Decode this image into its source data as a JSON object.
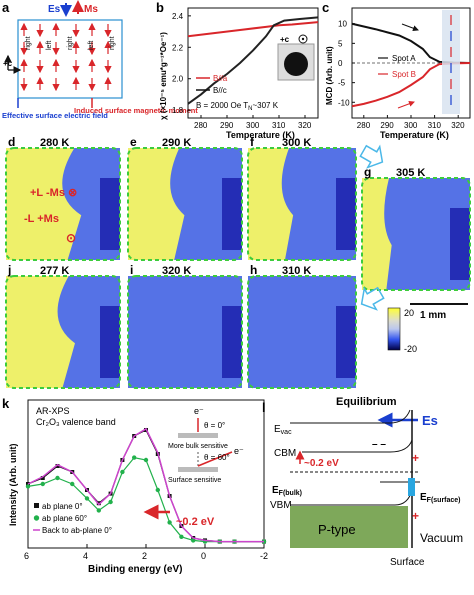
{
  "panels": {
    "a": {
      "label": "a",
      "es": "Es",
      "ms": "Ms",
      "axis_c": "+c",
      "row_labels": [
        "right",
        "left",
        "right",
        "left",
        "right"
      ],
      "efield_caption": "Effective surface electric field",
      "moment_caption": "Induced surface magnetic moment"
    },
    "b": {
      "label": "b",
      "ylabel": "χ (×10⁻⁵ emu*g⁻¹*Oe⁻¹)",
      "xlabel": "Temperature (K)",
      "legend": [
        "B//a",
        "B//c"
      ],
      "annotation": "B = 2000 Oe  T",
      "annotation_sub": "N",
      "annotation_tail": "~307 K",
      "inset_label": "+c",
      "xticks": [
        "280",
        "290",
        "300",
        "310",
        "320"
      ],
      "yticks": [
        "1.8",
        "2.0",
        "2.2",
        "2.4"
      ],
      "colors": {
        "a": "#d9262a",
        "c": "#222222"
      }
    },
    "c": {
      "label": "c",
      "ylabel": "MCD (Arb. unit)",
      "xlabel": "Temperature (K)",
      "legend": [
        "Spot A",
        "Spot B"
      ],
      "xticks": [
        "280",
        "290",
        "300",
        "310",
        "320"
      ],
      "yticks": [
        "10",
        "5",
        "0",
        "-5",
        "-10"
      ],
      "colors": {
        "A": "#111111",
        "B": "#d9262a"
      }
    },
    "maps": [
      {
        "label": "d",
        "temp": "280 K"
      },
      {
        "label": "e",
        "temp": "290 K"
      },
      {
        "label": "f",
        "temp": "300 K"
      },
      {
        "label": "g",
        "temp": "305 K"
      },
      {
        "label": "j",
        "temp": "277 K"
      },
      {
        "label": "i",
        "temp": "320 K"
      },
      {
        "label": "h",
        "temp": "310 K"
      }
    ],
    "d_annot": {
      "top": "+L -Ms ⊗",
      "bottom": "-L +Ms",
      "odot": "⊙"
    },
    "colorbar": {
      "max": "20",
      "min": "-20",
      "scale": "1 mm"
    },
    "k": {
      "label": "k",
      "title1": "AR-XPS",
      "title2": "Cr₂O₃ valence band",
      "ylabel": "Intensity (Arb. unit)",
      "xlabel": "Binding energy (eV)",
      "xticks": [
        "6",
        "4",
        "2",
        "0",
        "-2"
      ],
      "theta0": "θ = 0°",
      "theta60": "θ = 60°",
      "bulk": "More bulk sensitive",
      "surface": "Surface sensitive",
      "electron": "e⁻",
      "shift": "~0.2 eV",
      "legend": [
        "ab plane 0°",
        "ab plane 60°",
        "Back to ab-plane 0°"
      ],
      "colors": [
        "#111111",
        "#22b14c",
        "#cc44cc"
      ]
    },
    "l": {
      "label": "l",
      "title": "Equilibrium",
      "es": "Es",
      "evac": "E",
      "evac_sub": "vac",
      "cbm": "CBM",
      "shift": "~0.2 eV",
      "ef_bulk": "E",
      "ef_bulk_sub": "F(bulk)",
      "ef_surf": "E",
      "ef_surf_sub": "F(surface)",
      "vbm": "VBM",
      "ptype": "P-type",
      "vacuum": "Vacuum",
      "surface": "Surface"
    }
  },
  "chart_data": [
    {
      "type": "line",
      "title": "",
      "xlabel": "Temperature (K)",
      "ylabel": "χ (×10⁻⁵ emu*g⁻¹*Oe⁻¹)",
      "xlim": [
        275,
        325
      ],
      "ylim": [
        1.75,
        2.45
      ],
      "series": [
        {
          "name": "B//a",
          "x": [
            275,
            285,
            295,
            305,
            310,
            315,
            325
          ],
          "y": [
            2.27,
            2.29,
            2.31,
            2.33,
            2.34,
            2.345,
            2.36
          ]
        },
        {
          "name": "B//c",
          "x": [
            275,
            280,
            285,
            290,
            295,
            300,
            305,
            308,
            312,
            318,
            325
          ],
          "y": [
            1.84,
            1.9,
            1.97,
            2.03,
            2.1,
            2.18,
            2.27,
            2.34,
            2.37,
            2.38,
            2.39
          ]
        }
      ]
    },
    {
      "type": "line",
      "title": "",
      "xlabel": "Temperature (K)",
      "ylabel": "MCD (Arb. unit)",
      "xlim": [
        275,
        325
      ],
      "ylim": [
        -14,
        14
      ],
      "series": [
        {
          "name": "Spot A",
          "x": [
            275,
            280,
            285,
            290,
            295,
            300,
            305,
            308,
            312,
            318,
            325
          ],
          "y": [
            10,
            9.3,
            8.6,
            7.8,
            7,
            5.6,
            3.6,
            1.5,
            0.3,
            0.1,
            0
          ]
        },
        {
          "name": "Spot B",
          "x": [
            275,
            280,
            285,
            290,
            295,
            300,
            305,
            308,
            312,
            318,
            325
          ],
          "y": [
            -11,
            -10.4,
            -9.6,
            -8.6,
            -7.4,
            -5.6,
            -3.6,
            -1.6,
            -0.3,
            -0.1,
            0
          ]
        }
      ]
    },
    {
      "type": "line",
      "title": "",
      "xlabel": "Binding energy (eV)",
      "ylabel": "Intensity (Arb. unit)",
      "xlim": [
        6,
        -2
      ],
      "ylim": [
        0,
        1
      ],
      "series": [
        {
          "name": "ab plane 0°",
          "x": [
            6,
            5.5,
            5,
            4.5,
            4,
            3.6,
            3.2,
            2.8,
            2.4,
            2.0,
            1.6,
            1.2,
            0.8,
            0.4,
            0,
            -0.5,
            -1,
            -2
          ],
          "y": [
            0.5,
            0.55,
            0.65,
            0.6,
            0.45,
            0.34,
            0.42,
            0.7,
            0.9,
            0.95,
            0.75,
            0.4,
            0.15,
            0.05,
            0.03,
            0.02,
            0.02,
            0.02
          ]
        },
        {
          "name": "ab plane 60°",
          "x": [
            6,
            5.5,
            5,
            4.5,
            4,
            3.6,
            3.2,
            2.8,
            2.4,
            2.0,
            1.6,
            1.2,
            0.8,
            0.4,
            0,
            -0.5,
            -1,
            -2
          ],
          "y": [
            0.48,
            0.5,
            0.55,
            0.5,
            0.38,
            0.28,
            0.35,
            0.6,
            0.72,
            0.7,
            0.45,
            0.18,
            0.06,
            0.03,
            0.02,
            0.02,
            0.02,
            0.02
          ]
        },
        {
          "name": "Back to ab-plane 0°",
          "x": [
            6,
            5.5,
            5,
            4.5,
            4,
            3.6,
            3.2,
            2.8,
            2.4,
            2.0,
            1.6,
            1.2,
            0.8,
            0.4,
            0,
            -0.5,
            -1,
            -2
          ],
          "y": [
            0.5,
            0.56,
            0.66,
            0.6,
            0.45,
            0.33,
            0.42,
            0.7,
            0.9,
            0.96,
            0.76,
            0.4,
            0.15,
            0.05,
            0.03,
            0.02,
            0.02,
            0.02
          ]
        }
      ]
    }
  ]
}
